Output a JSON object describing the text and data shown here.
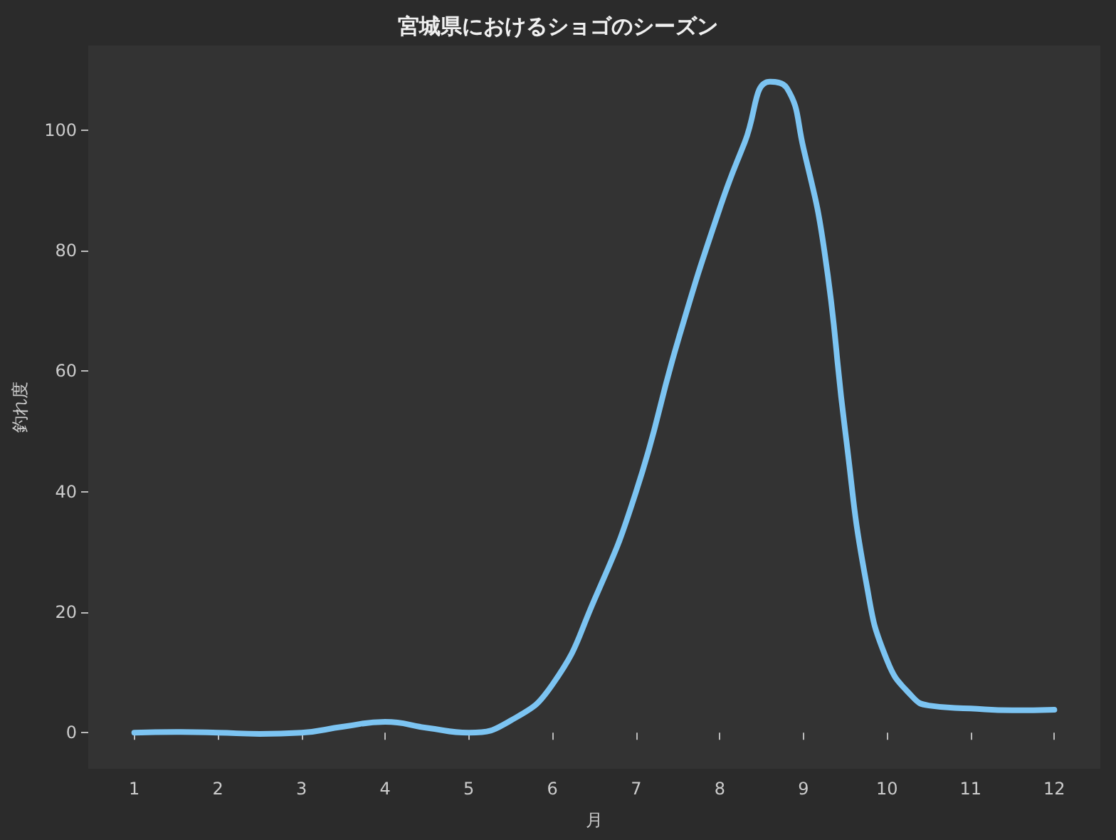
{
  "chart_data": {
    "type": "line",
    "title": "宮城県におけるショゴのシーズン",
    "xlabel": "月",
    "ylabel": "釣れ度",
    "x": [
      1,
      1.5,
      2,
      2.5,
      3,
      3.5,
      4,
      4.5,
      5,
      5.5,
      6,
      6.5,
      7,
      7.5,
      8,
      8.3,
      8.6,
      8.8,
      9,
      9.25,
      9.5,
      9.75,
      10,
      10.3,
      10.5,
      11,
      11.5,
      12
    ],
    "series": [
      {
        "color": "#7cc4f2",
        "values": [
          0,
          0.1,
          0,
          -0.2,
          0,
          1,
          1.8,
          0.8,
          0,
          2,
          8,
          22,
          40,
          65,
          87,
          98,
          108,
          107,
          97,
          80,
          50,
          25,
          12,
          6,
          4.5,
          4,
          3.7,
          3.8
        ]
      }
    ],
    "xlim": [
      0.45,
      12.55
    ],
    "xticks": [
      1,
      2,
      3,
      4,
      5,
      6,
      7,
      8,
      9,
      10,
      11,
      12
    ],
    "ylim": [
      -6,
      114
    ],
    "yticks": [
      0,
      20,
      40,
      60,
      80,
      100
    ],
    "marker": "none",
    "line_style": "solid"
  }
}
